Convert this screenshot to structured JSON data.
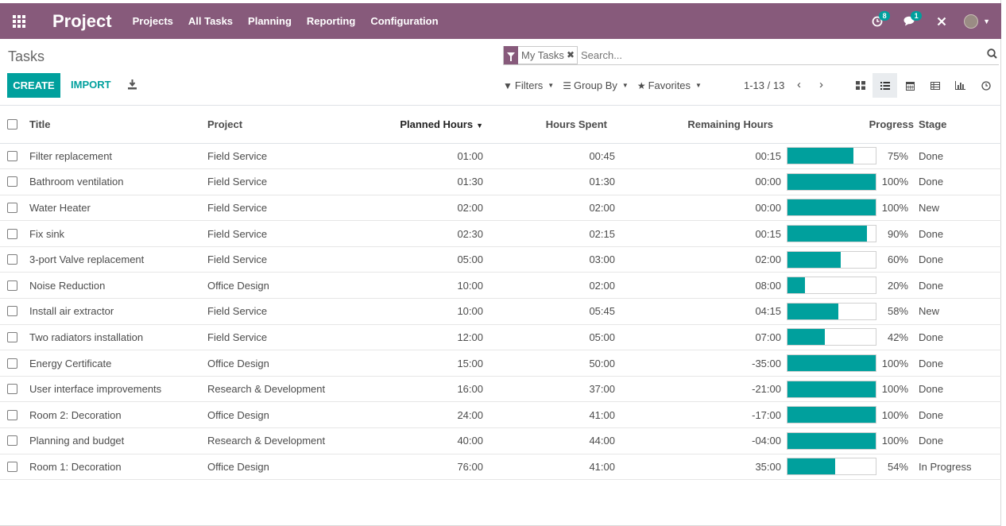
{
  "app": {
    "brand": "Project",
    "menu": [
      "Projects",
      "All Tasks",
      "Planning",
      "Reporting",
      "Configuration"
    ],
    "activity_badge": "8",
    "messages_badge": "1"
  },
  "control": {
    "breadcrumb": "Tasks",
    "facet": "My Tasks",
    "search_placeholder": "Search...",
    "create_label": "CREATE",
    "import_label": "IMPORT",
    "filters_label": "Filters",
    "groupby_label": "Group By",
    "favorites_label": "Favorites",
    "pager": "1-13 / 13"
  },
  "columns": {
    "title": "Title",
    "project": "Project",
    "planned": "Planned Hours",
    "spent": "Hours Spent",
    "remaining": "Remaining Hours",
    "progress": "Progress",
    "stage": "Stage"
  },
  "rows": [
    {
      "title": "Filter replacement",
      "project": "Field Service",
      "planned": "01:00",
      "spent": "00:45",
      "remaining": "00:15",
      "progress": 75,
      "progress_label": "75%",
      "stage": "Done"
    },
    {
      "title": "Bathroom ventilation",
      "project": "Field Service",
      "planned": "01:30",
      "spent": "01:30",
      "remaining": "00:00",
      "progress": 100,
      "progress_label": "100%",
      "stage": "Done"
    },
    {
      "title": "Water Heater",
      "project": "Field Service",
      "planned": "02:00",
      "spent": "02:00",
      "remaining": "00:00",
      "progress": 100,
      "progress_label": "100%",
      "stage": "New"
    },
    {
      "title": "Fix sink",
      "project": "Field Service",
      "planned": "02:30",
      "spent": "02:15",
      "remaining": "00:15",
      "progress": 90,
      "progress_label": "90%",
      "stage": "Done"
    },
    {
      "title": "3-port Valve replacement",
      "project": "Field Service",
      "planned": "05:00",
      "spent": "03:00",
      "remaining": "02:00",
      "progress": 60,
      "progress_label": "60%",
      "stage": "Done"
    },
    {
      "title": "Noise Reduction",
      "project": "Office Design",
      "planned": "10:00",
      "spent": "02:00",
      "remaining": "08:00",
      "progress": 20,
      "progress_label": "20%",
      "stage": "Done"
    },
    {
      "title": "Install air extractor",
      "project": "Field Service",
      "planned": "10:00",
      "spent": "05:45",
      "remaining": "04:15",
      "progress": 58,
      "progress_label": "58%",
      "stage": "New"
    },
    {
      "title": "Two radiators installation",
      "project": "Field Service",
      "planned": "12:00",
      "spent": "05:00",
      "remaining": "07:00",
      "progress": 42,
      "progress_label": "42%",
      "stage": "Done"
    },
    {
      "title": "Energy Certificate",
      "project": "Office Design",
      "planned": "15:00",
      "spent": "50:00",
      "remaining": "-35:00",
      "progress": 100,
      "progress_label": "100%",
      "stage": "Done"
    },
    {
      "title": "User interface improvements",
      "project": "Research & Development",
      "planned": "16:00",
      "spent": "37:00",
      "remaining": "-21:00",
      "progress": 100,
      "progress_label": "100%",
      "stage": "Done"
    },
    {
      "title": "Room 2: Decoration",
      "project": "Office Design",
      "planned": "24:00",
      "spent": "41:00",
      "remaining": "-17:00",
      "progress": 100,
      "progress_label": "100%",
      "stage": "Done"
    },
    {
      "title": "Planning and budget",
      "project": "Research & Development",
      "planned": "40:00",
      "spent": "44:00",
      "remaining": "-04:00",
      "progress": 100,
      "progress_label": "100%",
      "stage": "Done"
    },
    {
      "title": "Room 1: Decoration",
      "project": "Office Design",
      "planned": "76:00",
      "spent": "41:00",
      "remaining": "35:00",
      "progress": 54,
      "progress_label": "54%",
      "stage": "In Progress"
    }
  ],
  "colors": {
    "brand_bar": "#875a7b",
    "accent": "#00a09d"
  },
  "icons": {
    "apps": "apps-grid-icon",
    "activity": "clock-icon",
    "messages": "chat-icon",
    "debug": "tools-icon",
    "views": [
      "kanban-icon",
      "list-icon",
      "calendar-icon",
      "pivot-icon",
      "graph-icon",
      "activity-icon"
    ]
  }
}
